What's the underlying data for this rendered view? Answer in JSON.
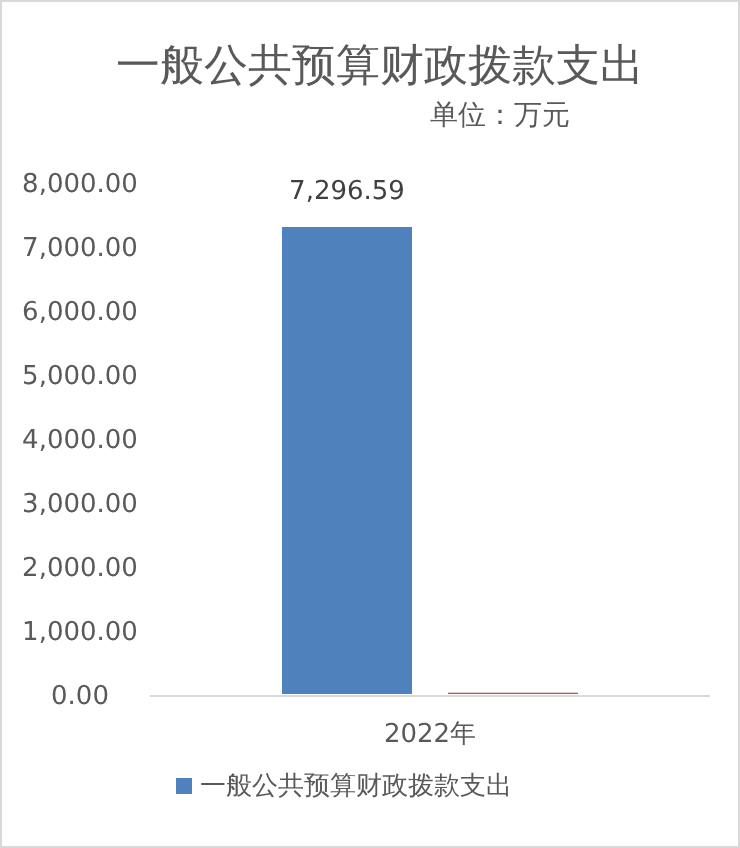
{
  "chart_data": {
    "type": "bar",
    "title": "一般公共预算财政拨款支出",
    "subtitle": "单位：万元",
    "categories": [
      "2022年"
    ],
    "series": [
      {
        "name": "一般公共预算财政拨款支出",
        "color": "#4f81bd",
        "values": [
          7296.59
        ],
        "value_labels": [
          "7,296.59"
        ]
      },
      {
        "color": "#c0504d",
        "values": [
          20
        ]
      }
    ],
    "ylim": [
      0,
      8000
    ],
    "yticks": [
      {
        "value": 0,
        "label": "0.00"
      },
      {
        "value": 1000,
        "label": "1,000.00"
      },
      {
        "value": 2000,
        "label": "2,000.00"
      },
      {
        "value": 3000,
        "label": "3,000.00"
      },
      {
        "value": 4000,
        "label": "4,000.00"
      },
      {
        "value": 5000,
        "label": "5,000.00"
      },
      {
        "value": 6000,
        "label": "6,000.00"
      },
      {
        "value": 7000,
        "label": "7,000.00"
      },
      {
        "value": 8000,
        "label": "8,000.00"
      }
    ],
    "grid": false,
    "legend": "bottom"
  }
}
